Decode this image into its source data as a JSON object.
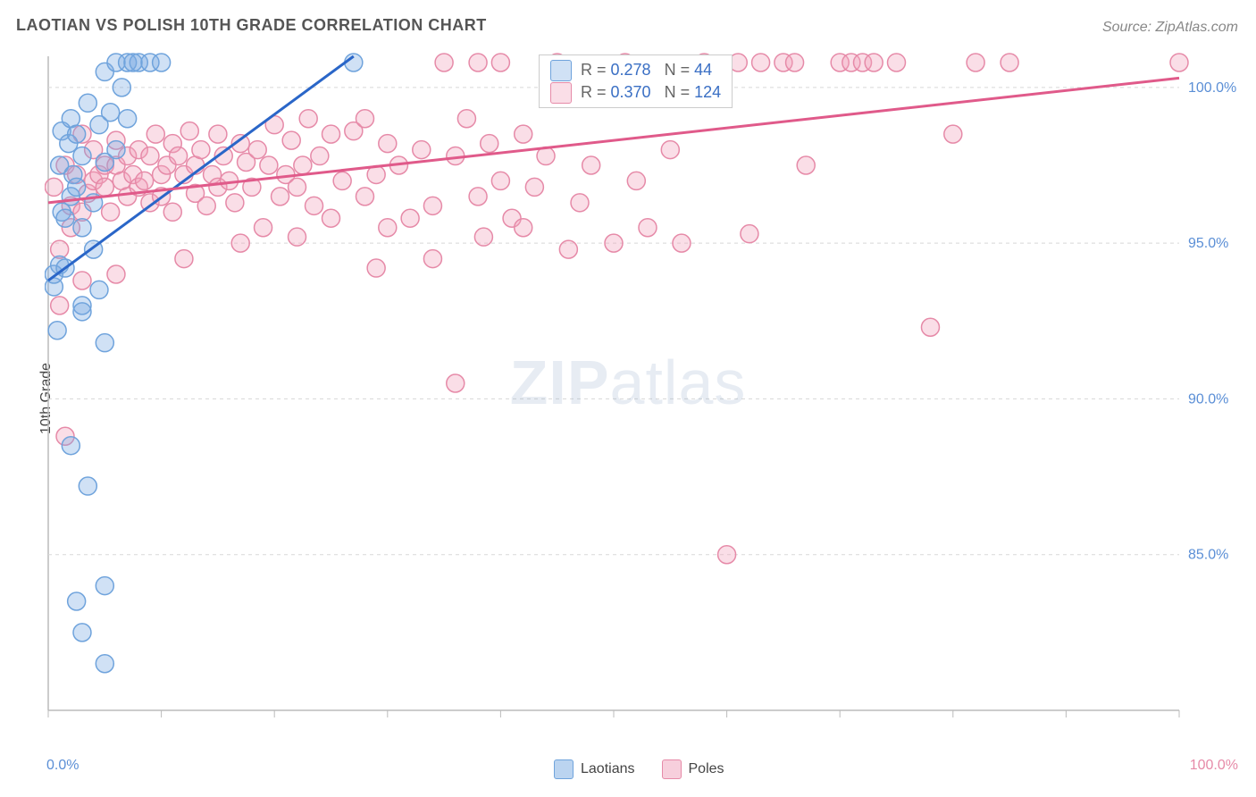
{
  "title": "LAOTIAN VS POLISH 10TH GRADE CORRELATION CHART",
  "source_label": "Source: ZipAtlas.com",
  "ylabel": "10th Grade",
  "watermark_bold": "ZIP",
  "watermark_rest": "atlas",
  "chart": {
    "type": "scatter",
    "background_color": "#ffffff",
    "grid_color": "#d8d8d8",
    "axis_color": "#bbbbbb",
    "tick_label_color_blue": "#5b8fd6",
    "tick_label_color_pink": "#e68aa8",
    "xlim": [
      0,
      100
    ],
    "ylim": [
      80,
      101
    ],
    "ytick_positions": [
      85,
      90,
      95,
      100
    ],
    "ytick_labels": [
      "85.0%",
      "90.0%",
      "95.0%",
      "100.0%"
    ],
    "x_left_label": "0.0%",
    "x_right_label": "100.0%",
    "xtick_positions": [
      0,
      10,
      20,
      30,
      40,
      50,
      60,
      70,
      80,
      90,
      100
    ],
    "marker_radius": 10,
    "marker_stroke_width": 1.5,
    "series": [
      {
        "name": "Laotians",
        "fill_color": "rgba(120,170,225,0.35)",
        "stroke_color": "#6fa3dc",
        "line_color": "#2a66c8",
        "line_width": 3,
        "stats": {
          "R": "0.278",
          "N": "44"
        },
        "trend": {
          "x1": 0,
          "y1": 93.8,
          "x2": 27,
          "y2": 101
        },
        "points": [
          [
            0.5,
            93.6
          ],
          [
            0.5,
            94.0
          ],
          [
            0.8,
            92.2
          ],
          [
            1.0,
            94.3
          ],
          [
            1.0,
            97.5
          ],
          [
            1.2,
            96.0
          ],
          [
            1.2,
            98.6
          ],
          [
            1.5,
            95.8
          ],
          [
            1.5,
            94.2
          ],
          [
            1.8,
            98.2
          ],
          [
            2.0,
            96.5
          ],
          [
            2.0,
            99.0
          ],
          [
            2.2,
            97.2
          ],
          [
            2.5,
            96.8
          ],
          [
            2.5,
            98.5
          ],
          [
            3.0,
            93.0
          ],
          [
            3.0,
            95.5
          ],
          [
            3.0,
            97.8
          ],
          [
            3.5,
            99.5
          ],
          [
            4.0,
            94.8
          ],
          [
            4.0,
            96.3
          ],
          [
            4.5,
            98.8
          ],
          [
            5.0,
            97.6
          ],
          [
            5.0,
            100.5
          ],
          [
            5.5,
            99.2
          ],
          [
            6.0,
            100.8
          ],
          [
            6.0,
            98.0
          ],
          [
            7.0,
            100.8
          ],
          [
            7.0,
            99.0
          ],
          [
            8.0,
            100.8
          ],
          [
            9.0,
            100.8
          ],
          [
            10.0,
            100.8
          ],
          [
            27.0,
            100.8
          ],
          [
            2.0,
            88.5
          ],
          [
            2.5,
            83.5
          ],
          [
            3.0,
            82.5
          ],
          [
            3.5,
            87.2
          ],
          [
            5.0,
            81.5
          ],
          [
            5.0,
            84.0
          ],
          [
            5.0,
            91.8
          ],
          [
            4.5,
            93.5
          ],
          [
            6.5,
            100.0
          ],
          [
            7.5,
            100.8
          ],
          [
            3.0,
            92.8
          ]
        ]
      },
      {
        "name": "Poles",
        "fill_color": "rgba(240,160,185,0.35)",
        "stroke_color": "#e68aa8",
        "line_color": "#e05a8a",
        "line_width": 3,
        "stats": {
          "R": "0.370",
          "N": "124"
        },
        "trend": {
          "x1": 0,
          "y1": 96.3,
          "x2": 100,
          "y2": 100.3
        },
        "points": [
          [
            0.5,
            96.8
          ],
          [
            1.0,
            94.8
          ],
          [
            1.5,
            97.5
          ],
          [
            2.0,
            95.5
          ],
          [
            2.0,
            96.2
          ],
          [
            2.5,
            97.2
          ],
          [
            3.0,
            96.0
          ],
          [
            3.0,
            98.5
          ],
          [
            3.5,
            96.6
          ],
          [
            4.0,
            97.0
          ],
          [
            4.0,
            98.0
          ],
          [
            4.5,
            97.2
          ],
          [
            5.0,
            96.8
          ],
          [
            5.0,
            97.5
          ],
          [
            5.5,
            96.0
          ],
          [
            6.0,
            97.5
          ],
          [
            6.0,
            98.3
          ],
          [
            6.5,
            97.0
          ],
          [
            7.0,
            97.8
          ],
          [
            7.0,
            96.5
          ],
          [
            7.5,
            97.2
          ],
          [
            8.0,
            96.8
          ],
          [
            8.0,
            98.0
          ],
          [
            8.5,
            97.0
          ],
          [
            9.0,
            96.3
          ],
          [
            9.0,
            97.8
          ],
          [
            9.5,
            98.5
          ],
          [
            10.0,
            97.2
          ],
          [
            10.0,
            96.5
          ],
          [
            10.5,
            97.5
          ],
          [
            11.0,
            98.2
          ],
          [
            11.0,
            96.0
          ],
          [
            11.5,
            97.8
          ],
          [
            12.0,
            97.2
          ],
          [
            12.5,
            98.6
          ],
          [
            13.0,
            96.6
          ],
          [
            13.0,
            97.5
          ],
          [
            13.5,
            98.0
          ],
          [
            14.0,
            96.2
          ],
          [
            14.5,
            97.2
          ],
          [
            15.0,
            98.5
          ],
          [
            15.0,
            96.8
          ],
          [
            15.5,
            97.8
          ],
          [
            16.0,
            97.0
          ],
          [
            16.5,
            96.3
          ],
          [
            17.0,
            98.2
          ],
          [
            17.5,
            97.6
          ],
          [
            18.0,
            96.8
          ],
          [
            18.5,
            98.0
          ],
          [
            19.0,
            95.5
          ],
          [
            19.5,
            97.5
          ],
          [
            20.0,
            98.8
          ],
          [
            20.5,
            96.5
          ],
          [
            21.0,
            97.2
          ],
          [
            21.5,
            98.3
          ],
          [
            22.0,
            96.8
          ],
          [
            22.5,
            97.5
          ],
          [
            23.0,
            99.0
          ],
          [
            23.5,
            96.2
          ],
          [
            24.0,
            97.8
          ],
          [
            25.0,
            98.5
          ],
          [
            25.0,
            95.8
          ],
          [
            26.0,
            97.0
          ],
          [
            27.0,
            98.6
          ],
          [
            28.0,
            96.5
          ],
          [
            28.0,
            99.0
          ],
          [
            29.0,
            97.2
          ],
          [
            30.0,
            95.5
          ],
          [
            30.0,
            98.2
          ],
          [
            31.0,
            97.5
          ],
          [
            32.0,
            95.8
          ],
          [
            33.0,
            98.0
          ],
          [
            34.0,
            96.2
          ],
          [
            35.0,
            100.8
          ],
          [
            36.0,
            97.8
          ],
          [
            37.0,
            99.0
          ],
          [
            38.0,
            100.8
          ],
          [
            38.0,
            96.5
          ],
          [
            39.0,
            98.2
          ],
          [
            40.0,
            97.0
          ],
          [
            40.0,
            100.8
          ],
          [
            41.0,
            95.8
          ],
          [
            42.0,
            98.5
          ],
          [
            43.0,
            96.8
          ],
          [
            44.0,
            97.8
          ],
          [
            45.0,
            100.8
          ],
          [
            46.0,
            94.8
          ],
          [
            47.0,
            96.3
          ],
          [
            48.0,
            97.5
          ],
          [
            50.0,
            95.0
          ],
          [
            51.0,
            100.8
          ],
          [
            52.0,
            97.0
          ],
          [
            53.0,
            95.5
          ],
          [
            55.0,
            98.0
          ],
          [
            56.0,
            95.0
          ],
          [
            58.0,
            100.8
          ],
          [
            60.0,
            85.0
          ],
          [
            61.0,
            100.8
          ],
          [
            62.0,
            95.3
          ],
          [
            63.0,
            100.8
          ],
          [
            65.0,
            100.8
          ],
          [
            66.0,
            100.8
          ],
          [
            67.0,
            97.5
          ],
          [
            70.0,
            100.8
          ],
          [
            71.0,
            100.8
          ],
          [
            72.0,
            100.8
          ],
          [
            73.0,
            100.8
          ],
          [
            75.0,
            100.8
          ],
          [
            78.0,
            92.3
          ],
          [
            80.0,
            98.5
          ],
          [
            82.0,
            100.8
          ],
          [
            85.0,
            100.8
          ],
          [
            100.0,
            100.8
          ],
          [
            1.0,
            93.0
          ],
          [
            1.5,
            88.8
          ],
          [
            3.0,
            93.8
          ],
          [
            6.0,
            94.0
          ],
          [
            12.0,
            94.5
          ],
          [
            17.0,
            95.0
          ],
          [
            22.0,
            95.2
          ],
          [
            29.0,
            94.2
          ],
          [
            34.0,
            94.5
          ],
          [
            36.0,
            90.5
          ],
          [
            42.0,
            95.5
          ],
          [
            38.5,
            95.2
          ]
        ]
      }
    ]
  },
  "bottom_legend": [
    {
      "label": "Laotians",
      "fill": "rgba(120,170,225,0.5)",
      "stroke": "#6fa3dc"
    },
    {
      "label": "Poles",
      "fill": "rgba(240,160,185,0.5)",
      "stroke": "#e68aa8"
    }
  ]
}
